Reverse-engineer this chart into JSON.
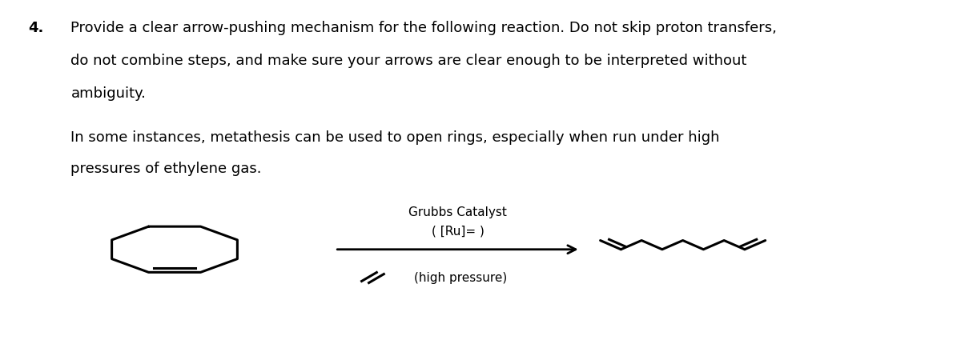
{
  "title_number": "4.",
  "title_text1": "Provide a clear arrow-pushing mechanism for the following reaction. Do not skip proton transfers,",
  "title_text2": "do not combine steps, and make sure your arrows are clear enough to be interpreted without",
  "title_text3": "ambiguity.",
  "body_text1": "In some instances, metathesis can be used to open rings, especially when run under high",
  "body_text2": "pressures of ethylene gas.",
  "catalyst_line1": "Grubbs Catalyst",
  "catalyst_line2": "( [Ru]= )",
  "high_pressure_text": "(high pressure)",
  "bg_color": "#ffffff",
  "text_color": "#000000",
  "font_size_title": 13,
  "font_size_body": 13,
  "font_size_chem": 11
}
